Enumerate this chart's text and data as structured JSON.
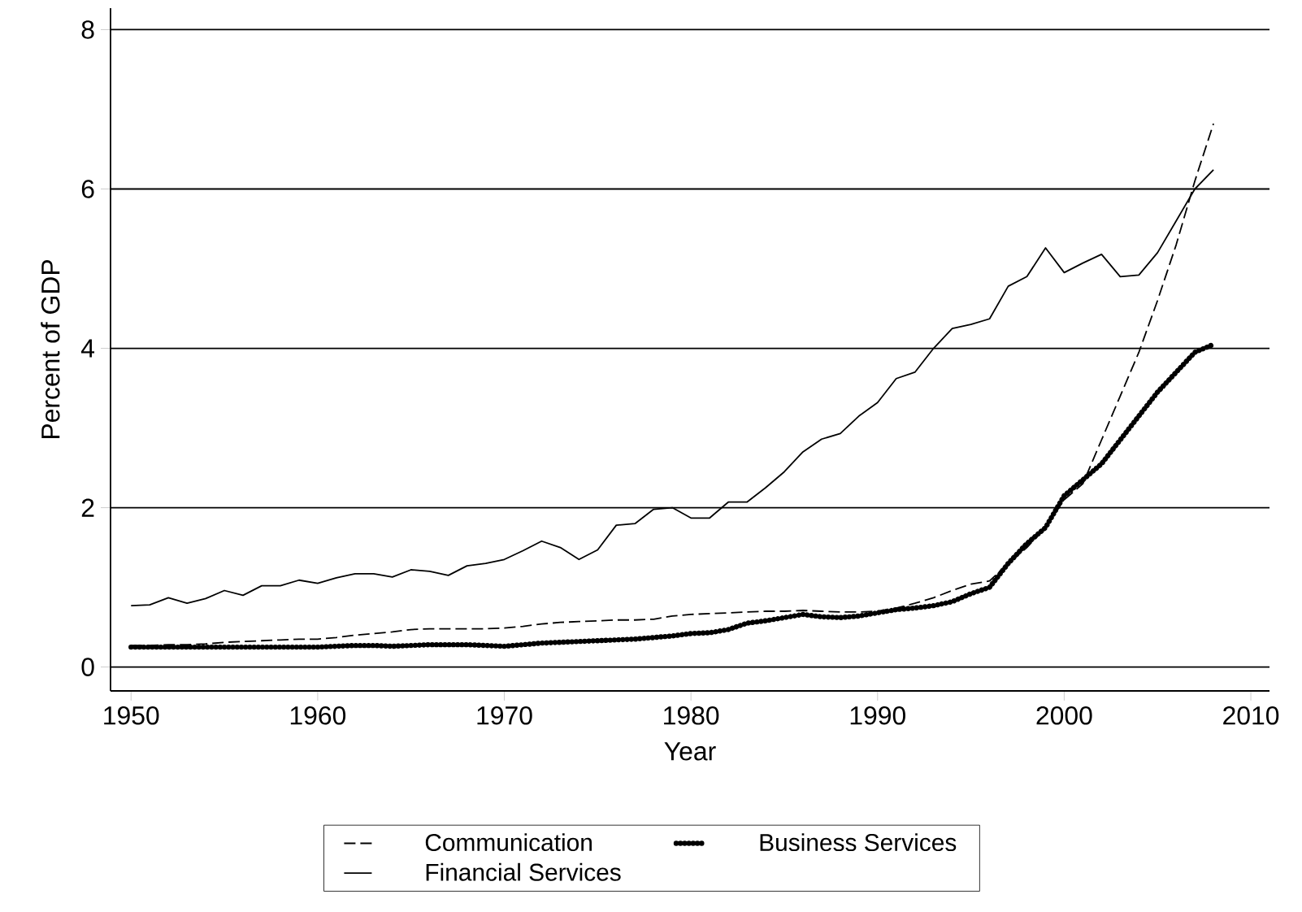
{
  "chart_data": {
    "type": "line",
    "xlabel": "Year",
    "ylabel": "Percent of GDP",
    "x": [
      1950,
      1951,
      1952,
      1953,
      1954,
      1955,
      1956,
      1957,
      1958,
      1959,
      1960,
      1961,
      1962,
      1963,
      1964,
      1965,
      1966,
      1967,
      1968,
      1969,
      1970,
      1971,
      1972,
      1973,
      1974,
      1975,
      1976,
      1977,
      1978,
      1979,
      1980,
      1981,
      1982,
      1983,
      1984,
      1985,
      1986,
      1987,
      1988,
      1989,
      1990,
      1991,
      1992,
      1993,
      1994,
      1995,
      1996,
      1997,
      1998,
      1999,
      2000,
      2001,
      2002,
      2003,
      2004,
      2005,
      2006,
      2007,
      2008
    ],
    "series": [
      {
        "name": "Communication",
        "color": "#000000",
        "line_style": "dashed",
        "values": [
          0.27,
          0.27,
          0.28,
          0.28,
          0.29,
          0.31,
          0.32,
          0.33,
          0.34,
          0.35,
          0.35,
          0.37,
          0.4,
          0.42,
          0.44,
          0.47,
          0.48,
          0.48,
          0.48,
          0.48,
          0.49,
          0.51,
          0.54,
          0.56,
          0.57,
          0.58,
          0.59,
          0.59,
          0.6,
          0.64,
          0.66,
          0.67,
          0.68,
          0.69,
          0.7,
          0.7,
          0.71,
          0.7,
          0.69,
          0.69,
          0.7,
          0.74,
          0.8,
          0.87,
          0.96,
          1.04,
          1.08,
          1.3,
          1.5,
          1.75,
          2.1,
          2.3,
          2.85,
          3.4,
          3.95,
          4.6,
          5.3,
          6.1,
          6.82
        ]
      },
      {
        "name": "Business Services",
        "color": "#000000",
        "line_style": "dotted",
        "values": [
          0.25,
          0.25,
          0.25,
          0.25,
          0.25,
          0.25,
          0.25,
          0.25,
          0.25,
          0.25,
          0.25,
          0.26,
          0.27,
          0.27,
          0.26,
          0.27,
          0.28,
          0.28,
          0.28,
          0.27,
          0.26,
          0.28,
          0.3,
          0.31,
          0.32,
          0.33,
          0.34,
          0.35,
          0.37,
          0.39,
          0.42,
          0.43,
          0.47,
          0.55,
          0.58,
          0.62,
          0.66,
          0.63,
          0.62,
          0.64,
          0.68,
          0.72,
          0.74,
          0.77,
          0.82,
          0.92,
          1.0,
          1.3,
          1.55,
          1.75,
          2.15,
          2.35,
          2.55,
          2.85,
          3.15,
          3.45,
          3.7,
          3.95,
          4.05
        ]
      },
      {
        "name": "Financial Services",
        "color": "#000000",
        "line_style": "solid",
        "values": [
          0.77,
          0.78,
          0.87,
          0.8,
          0.86,
          0.96,
          0.9,
          1.02,
          1.02,
          1.09,
          1.05,
          1.12,
          1.17,
          1.17,
          1.13,
          1.22,
          1.2,
          1.15,
          1.27,
          1.3,
          1.35,
          1.46,
          1.58,
          1.5,
          1.35,
          1.47,
          1.78,
          1.8,
          1.98,
          2.0,
          1.87,
          1.87,
          2.07,
          2.07,
          2.25,
          2.45,
          2.7,
          2.86,
          2.93,
          3.15,
          3.32,
          3.62,
          3.7,
          4.0,
          4.25,
          4.3,
          4.37,
          4.78,
          4.9,
          5.26,
          4.95,
          5.07,
          5.18,
          4.9,
          4.92,
          5.2,
          5.6,
          6.0,
          6.24
        ]
      }
    ],
    "xlim": [
      1948.9,
      2011
    ],
    "ylim": [
      -0.3,
      8.27
    ],
    "xticks": [
      1950,
      1960,
      1970,
      1980,
      1990,
      2000,
      2010
    ],
    "yticks": [
      0,
      2,
      4,
      6,
      8
    ],
    "grid": "y",
    "legend": "bottom",
    "marker": "none"
  }
}
